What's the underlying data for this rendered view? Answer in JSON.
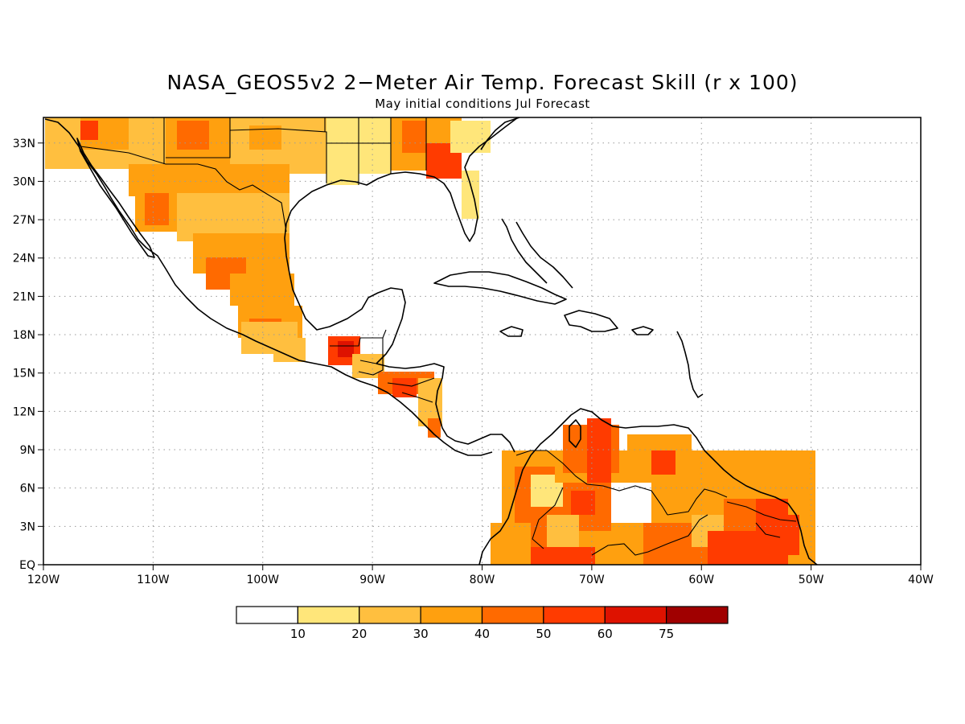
{
  "title": "NASA_GEOS5v2 2−Meter Air Temp. Forecast Skill (r x 100)",
  "subtitle": "May initial conditions   Jul Forecast",
  "colors": {
    "level_0": "#ffffff",
    "level_1": "#ffe67a",
    "level_2": "#ffbf3f",
    "level_3": "#ffa00f",
    "level_4": "#ff6a00",
    "level_5": "#ff3b00",
    "level_6": "#de1200",
    "level_7": "#a00000"
  },
  "chart_data": {
    "type": "heatmap",
    "x_ticks": [
      "120W",
      "110W",
      "100W",
      "90W",
      "80W",
      "70W",
      "60W",
      "50W",
      "40W"
    ],
    "y_ticks": [
      "EQ",
      "3N",
      "6N",
      "9N",
      "12N",
      "15N",
      "18N",
      "21N",
      "24N",
      "27N",
      "30N",
      "33N"
    ],
    "lon_range": [
      -120,
      -40
    ],
    "lat_range": [
      0,
      35
    ],
    "colorbar": {
      "labels": [
        "10",
        "20",
        "30",
        "40",
        "50",
        "60",
        "75"
      ],
      "bounds": [
        10,
        20,
        30,
        40,
        50,
        60,
        75
      ]
    },
    "grid": true
  }
}
